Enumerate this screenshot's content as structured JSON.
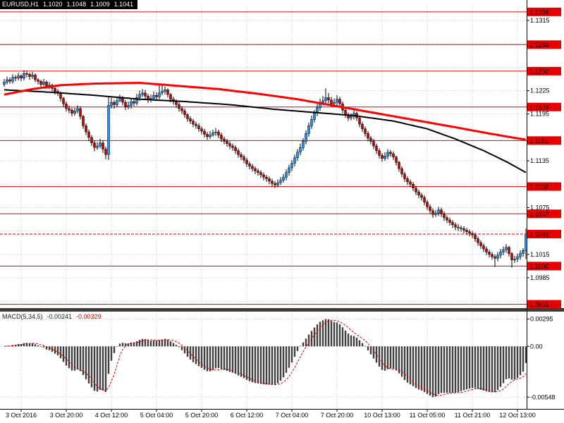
{
  "header": {
    "symbol_period": "EURUSD,H1",
    "open": "1.1020",
    "high": "1.1048",
    "low": "1.1009",
    "close": "1.1041"
  },
  "macd_label": {
    "name": "MACD(5,34,5)",
    "value": "-0.00241",
    "signal": "-0.00329"
  },
  "colors": {
    "background": "#ffffff",
    "grid": "#c9c9c9",
    "level": "#e60000",
    "bull": "#1e90ff",
    "bear": "#cc0000",
    "wick": "#000000",
    "ma_slow": "#ff0000",
    "ma_fast": "#000000",
    "histogram": "#3f3f3f",
    "signal_line": "#e00000",
    "label_box": "#e60000",
    "label_box_text": "#ffffff",
    "header_bg": "#000000",
    "header_text": "#ffffff",
    "separator": "#3c3c3c",
    "axis_line": "#000000"
  },
  "chart_data": {
    "type": "candlestick",
    "symbol": "EURUSD",
    "timeframe": "H1",
    "price_axis": {
      "top": 1.1334,
      "bottom": 1.0947,
      "grid_prices": [
        1.0955,
        1.0985,
        1.1015,
        1.1045,
        1.1075,
        1.1105,
        1.1135,
        1.1165,
        1.1195,
        1.1225,
        1.1255,
        1.1285,
        1.1315
      ],
      "plain_labels": [
        1.1315,
        1.1225,
        1.1195,
        1.1135,
        1.1075,
        1.1015,
        1.0985
      ],
      "level_lines": [
        1.1326,
        1.1284,
        1.125,
        1.1204,
        1.1161,
        1.1102,
        1.1067,
        1.1,
        1.0951
      ],
      "current_price": 1.1041
    },
    "time_labels": [
      [
        6,
        "3 Oct 2016"
      ],
      [
        22,
        "3 Oct 20:00"
      ],
      [
        38,
        "4 Oct 12:00"
      ],
      [
        54,
        "5 Oct 04:00"
      ],
      [
        70,
        "5 Oct 20:00"
      ],
      [
        86,
        "6 Oct 12:00"
      ],
      [
        102,
        "7 Oct 04:00"
      ],
      [
        118,
        "7 Oct 20:00"
      ],
      [
        134,
        "10 Oct 13:00"
      ],
      [
        150,
        "11 Oct 05:00"
      ],
      [
        166,
        "11 Oct 21:00"
      ],
      [
        182,
        "12 Oct 13:00"
      ]
    ],
    "ma_red_waypoints": [
      [
        0,
        1.122
      ],
      [
        10,
        1.1227
      ],
      [
        20,
        1.1232
      ],
      [
        32,
        1.1234
      ],
      [
        48,
        1.1235
      ],
      [
        62,
        1.1231
      ],
      [
        76,
        1.1227
      ],
      [
        90,
        1.1221
      ],
      [
        104,
        1.1214
      ],
      [
        118,
        1.1205
      ],
      [
        132,
        1.1196
      ],
      [
        146,
        1.1187
      ],
      [
        160,
        1.1178
      ],
      [
        172,
        1.117
      ],
      [
        185,
        1.1162
      ]
    ],
    "ma_black_waypoints": [
      [
        0,
        1.1226
      ],
      [
        16,
        1.1223
      ],
      [
        32,
        1.1219
      ],
      [
        48,
        1.1214
      ],
      [
        64,
        1.1211
      ],
      [
        80,
        1.1207
      ],
      [
        96,
        1.1201
      ],
      [
        110,
        1.1197
      ],
      [
        124,
        1.1193
      ],
      [
        138,
        1.1186
      ],
      [
        150,
        1.1176
      ],
      [
        160,
        1.1163
      ],
      [
        170,
        1.1148
      ],
      [
        178,
        1.1134
      ],
      [
        185,
        1.112
      ]
    ],
    "macd": {
      "params": [
        5,
        34,
        5
      ],
      "axis": {
        "top": 0.0036,
        "bottom": -0.0066,
        "labels": [
          [
            "0.00295",
            0.00295
          ],
          [
            "0.00",
            0
          ],
          [
            "-0.00548",
            -0.00548
          ]
        ],
        "max_value": 0.00295,
        "min_value": -0.00548
      }
    },
    "candles": [
      [
        1.1233,
        1.124,
        1.123,
        1.1236
      ],
      [
        1.1236,
        1.1243,
        1.1233,
        1.1239
      ],
      [
        1.1239,
        1.1242,
        1.1234,
        1.1237
      ],
      [
        1.1237,
        1.1246,
        1.1234,
        1.1242
      ],
      [
        1.1242,
        1.1245,
        1.1237,
        1.1241
      ],
      [
        1.1241,
        1.1248,
        1.1238,
        1.1244
      ],
      [
        1.1244,
        1.1246,
        1.1237,
        1.1241
      ],
      [
        1.1241,
        1.1251,
        1.1238,
        1.1247
      ],
      [
        1.1247,
        1.125,
        1.1242,
        1.1246
      ],
      [
        1.1246,
        1.1248,
        1.1239,
        1.1243
      ],
      [
        1.1243,
        1.1249,
        1.124,
        1.1245
      ],
      [
        1.1245,
        1.1247,
        1.1236,
        1.1239
      ],
      [
        1.1239,
        1.1241,
        1.1233,
        1.1237
      ],
      [
        1.1237,
        1.1239,
        1.123,
        1.1233
      ],
      [
        1.1233,
        1.124,
        1.1231,
        1.1236
      ],
      [
        1.1236,
        1.1238,
        1.1227,
        1.123
      ],
      [
        1.123,
        1.1236,
        1.1227,
        1.1232
      ],
      [
        1.1232,
        1.1234,
        1.1224,
        1.1228
      ],
      [
        1.1228,
        1.123,
        1.122,
        1.1224
      ],
      [
        1.1224,
        1.1227,
        1.1218,
        1.1222
      ],
      [
        1.1222,
        1.1224,
        1.1211,
        1.1215
      ],
      [
        1.1215,
        1.1217,
        1.1204,
        1.1208
      ],
      [
        1.1208,
        1.1211,
        1.1198,
        1.1202
      ],
      [
        1.1202,
        1.1206,
        1.1196,
        1.12
      ],
      [
        1.12,
        1.1203,
        1.1192,
        1.1196
      ],
      [
        1.1196,
        1.1203,
        1.1193,
        1.1199
      ],
      [
        1.1199,
        1.1206,
        1.1196,
        1.1202
      ],
      [
        1.1202,
        1.1205,
        1.1188,
        1.1192
      ],
      [
        1.1192,
        1.1194,
        1.1176,
        1.118
      ],
      [
        1.118,
        1.1183,
        1.1168,
        1.1172
      ],
      [
        1.1172,
        1.1175,
        1.116,
        1.1165
      ],
      [
        1.1165,
        1.1168,
        1.1154,
        1.1158
      ],
      [
        1.1158,
        1.1161,
        1.1147,
        1.1152
      ],
      [
        1.1152,
        1.1159,
        1.1149,
        1.1154
      ],
      [
        1.1154,
        1.1163,
        1.1151,
        1.1158
      ],
      [
        1.1158,
        1.1161,
        1.1145,
        1.115
      ],
      [
        1.115,
        1.1153,
        1.1137,
        1.1143
      ],
      [
        1.1143,
        1.1218,
        1.1136,
        1.1206
      ],
      [
        1.1206,
        1.1216,
        1.1202,
        1.121
      ],
      [
        1.121,
        1.1213,
        1.1202,
        1.1207
      ],
      [
        1.1207,
        1.1217,
        1.1204,
        1.1212
      ],
      [
        1.1212,
        1.122,
        1.121,
        1.1215
      ],
      [
        1.1215,
        1.1218,
        1.1206,
        1.121
      ],
      [
        1.121,
        1.1213,
        1.12,
        1.1204
      ],
      [
        1.1204,
        1.1211,
        1.1201,
        1.1206
      ],
      [
        1.1206,
        1.1215,
        1.1202,
        1.1211
      ],
      [
        1.1211,
        1.1214,
        1.1205,
        1.1209
      ],
      [
        1.1209,
        1.1221,
        1.1206,
        1.1216
      ],
      [
        1.1216,
        1.1225,
        1.1212,
        1.122
      ],
      [
        1.122,
        1.1227,
        1.1217,
        1.1222
      ],
      [
        1.1222,
        1.1226,
        1.1214,
        1.1218
      ],
      [
        1.1218,
        1.1221,
        1.1209,
        1.1213
      ],
      [
        1.1213,
        1.122,
        1.121,
        1.1215
      ],
      [
        1.1215,
        1.1224,
        1.1212,
        1.1219
      ],
      [
        1.1219,
        1.1223,
        1.1213,
        1.1217
      ],
      [
        1.1217,
        1.1232,
        1.1214,
        1.1222
      ],
      [
        1.1222,
        1.1233,
        1.1219,
        1.1224
      ],
      [
        1.1224,
        1.123,
        1.122,
        1.1226
      ],
      [
        1.1226,
        1.1228,
        1.1216,
        1.122
      ],
      [
        1.122,
        1.1222,
        1.121,
        1.1214
      ],
      [
        1.1214,
        1.1217,
        1.1207,
        1.1211
      ],
      [
        1.1211,
        1.1214,
        1.1203,
        1.1207
      ],
      [
        1.1207,
        1.121,
        1.1198,
        1.1202
      ],
      [
        1.1202,
        1.1205,
        1.1195,
        1.1199
      ],
      [
        1.1199,
        1.1202,
        1.119,
        1.1194
      ],
      [
        1.1194,
        1.1196,
        1.1185,
        1.1189
      ],
      [
        1.1189,
        1.1192,
        1.1182,
        1.1186
      ],
      [
        1.1186,
        1.1189,
        1.1178,
        1.1182
      ],
      [
        1.1182,
        1.1185,
        1.1176,
        1.118
      ],
      [
        1.118,
        1.1183,
        1.1172,
        1.1176
      ],
      [
        1.1176,
        1.1179,
        1.1169,
        1.1173
      ],
      [
        1.1173,
        1.1176,
        1.1165,
        1.1169
      ],
      [
        1.1169,
        1.1172,
        1.1162,
        1.1166
      ],
      [
        1.1166,
        1.1173,
        1.1163,
        1.1168
      ],
      [
        1.1168,
        1.1175,
        1.1166,
        1.1171
      ],
      [
        1.1171,
        1.1177,
        1.1167,
        1.1172
      ],
      [
        1.1172,
        1.1175,
        1.1164,
        1.1168
      ],
      [
        1.1168,
        1.1171,
        1.1159,
        1.1163
      ],
      [
        1.1163,
        1.1166,
        1.1156,
        1.116
      ],
      [
        1.116,
        1.1163,
        1.1153,
        1.1157
      ],
      [
        1.1157,
        1.116,
        1.115,
        1.1154
      ],
      [
        1.1154,
        1.1157,
        1.1148,
        1.1152
      ],
      [
        1.1152,
        1.1155,
        1.1144,
        1.1148
      ],
      [
        1.1148,
        1.1151,
        1.1139,
        1.1143
      ],
      [
        1.1143,
        1.1146,
        1.1136,
        1.114
      ],
      [
        1.114,
        1.1143,
        1.1132,
        1.1136
      ],
      [
        1.1136,
        1.1139,
        1.1127,
        1.1131
      ],
      [
        1.1131,
        1.1134,
        1.1124,
        1.1128
      ],
      [
        1.1128,
        1.1131,
        1.1121,
        1.1125
      ],
      [
        1.1125,
        1.1128,
        1.1118,
        1.1122
      ],
      [
        1.1122,
        1.1125,
        1.1116,
        1.112
      ],
      [
        1.112,
        1.1123,
        1.1113,
        1.1117
      ],
      [
        1.1117,
        1.112,
        1.111,
        1.1114
      ],
      [
        1.1114,
        1.1117,
        1.1108,
        1.1112
      ],
      [
        1.1112,
        1.1115,
        1.1105,
        1.1109
      ],
      [
        1.1109,
        1.1112,
        1.1102,
        1.1106
      ],
      [
        1.1106,
        1.1109,
        1.11,
        1.1104
      ],
      [
        1.1104,
        1.1111,
        1.1101,
        1.1107
      ],
      [
        1.1107,
        1.1114,
        1.1104,
        1.111
      ],
      [
        1.111,
        1.1118,
        1.1107,
        1.1114
      ],
      [
        1.1114,
        1.1124,
        1.111,
        1.112
      ],
      [
        1.112,
        1.113,
        1.1116,
        1.1126
      ],
      [
        1.1126,
        1.1136,
        1.1122,
        1.1132
      ],
      [
        1.1132,
        1.1143,
        1.1128,
        1.1139
      ],
      [
        1.1139,
        1.115,
        1.1135,
        1.1146
      ],
      [
        1.1146,
        1.1157,
        1.1142,
        1.1152
      ],
      [
        1.1152,
        1.1164,
        1.1148,
        1.116
      ],
      [
        1.116,
        1.1174,
        1.1156,
        1.117
      ],
      [
        1.117,
        1.1184,
        1.1166,
        1.118
      ],
      [
        1.118,
        1.1193,
        1.1176,
        1.1188
      ],
      [
        1.1188,
        1.12,
        1.1184,
        1.1196
      ],
      [
        1.1196,
        1.1208,
        1.1192,
        1.1203
      ],
      [
        1.1203,
        1.1215,
        1.1199,
        1.121
      ],
      [
        1.121,
        1.1218,
        1.1206,
        1.1212
      ],
      [
        1.1212,
        1.1228,
        1.1208,
        1.1216
      ],
      [
        1.1216,
        1.1222,
        1.1209,
        1.1213
      ],
      [
        1.1213,
        1.1217,
        1.1204,
        1.1208
      ],
      [
        1.1208,
        1.1215,
        1.1205,
        1.121
      ],
      [
        1.121,
        1.1219,
        1.1206,
        1.1214
      ],
      [
        1.1214,
        1.1217,
        1.1204,
        1.1208
      ],
      [
        1.1208,
        1.1211,
        1.1196,
        1.12
      ],
      [
        1.12,
        1.1203,
        1.119,
        1.1194
      ],
      [
        1.1194,
        1.1197,
        1.1186,
        1.119
      ],
      [
        1.119,
        1.1196,
        1.1187,
        1.1192
      ],
      [
        1.1192,
        1.12,
        1.1188,
        1.1196
      ],
      [
        1.1196,
        1.1198,
        1.1186,
        1.119
      ],
      [
        1.119,
        1.1192,
        1.1178,
        1.1182
      ],
      [
        1.1182,
        1.1185,
        1.1172,
        1.1176
      ],
      [
        1.1176,
        1.1179,
        1.1166,
        1.117
      ],
      [
        1.117,
        1.1173,
        1.116,
        1.1164
      ],
      [
        1.1164,
        1.1167,
        1.1156,
        1.116
      ],
      [
        1.116,
        1.1163,
        1.115,
        1.1154
      ],
      [
        1.1154,
        1.1157,
        1.1144,
        1.1148
      ],
      [
        1.1148,
        1.1151,
        1.1138,
        1.1142
      ],
      [
        1.1142,
        1.1145,
        1.1134,
        1.1138
      ],
      [
        1.1138,
        1.1146,
        1.1135,
        1.1141
      ],
      [
        1.1141,
        1.115,
        1.1137,
        1.1146
      ],
      [
        1.1146,
        1.1149,
        1.114,
        1.1144
      ],
      [
        1.1144,
        1.1147,
        1.1136,
        1.114
      ],
      [
        1.114,
        1.1142,
        1.1129,
        1.1133
      ],
      [
        1.1133,
        1.1135,
        1.1121,
        1.1125
      ],
      [
        1.1125,
        1.1128,
        1.1114,
        1.1118
      ],
      [
        1.1118,
        1.1121,
        1.1108,
        1.1112
      ],
      [
        1.1112,
        1.1115,
        1.1104,
        1.1108
      ],
      [
        1.1108,
        1.1111,
        1.1101,
        1.1105
      ],
      [
        1.1105,
        1.1108,
        1.1096,
        1.11
      ],
      [
        1.11,
        1.1103,
        1.1091,
        1.1095
      ],
      [
        1.1095,
        1.1098,
        1.1087,
        1.1091
      ],
      [
        1.1091,
        1.1094,
        1.1084,
        1.1088
      ],
      [
        1.1088,
        1.1091,
        1.1078,
        1.1082
      ],
      [
        1.1082,
        1.1085,
        1.1072,
        1.1076
      ],
      [
        1.1076,
        1.1079,
        1.1067,
        1.1071
      ],
      [
        1.1071,
        1.1074,
        1.1062,
        1.1066
      ],
      [
        1.1066,
        1.1072,
        1.1063,
        1.1068
      ],
      [
        1.1068,
        1.1076,
        1.1064,
        1.1072
      ],
      [
        1.1072,
        1.1075,
        1.1063,
        1.1067
      ],
      [
        1.1067,
        1.107,
        1.1058,
        1.1062
      ],
      [
        1.1062,
        1.1065,
        1.1055,
        1.1059
      ],
      [
        1.1059,
        1.1062,
        1.1052,
        1.1056
      ],
      [
        1.1056,
        1.1059,
        1.1049,
        1.1053
      ],
      [
        1.1053,
        1.1056,
        1.1046,
        1.105
      ],
      [
        1.105,
        1.1054,
        1.1045,
        1.1049
      ],
      [
        1.1049,
        1.1052,
        1.1044,
        1.1048
      ],
      [
        1.1048,
        1.1051,
        1.1042,
        1.1046
      ],
      [
        1.1046,
        1.1049,
        1.104,
        1.1044
      ],
      [
        1.1044,
        1.1047,
        1.1038,
        1.1042
      ],
      [
        1.1042,
        1.1045,
        1.1036,
        1.104
      ],
      [
        1.104,
        1.1043,
        1.1031,
        1.1035
      ],
      [
        1.1035,
        1.1038,
        1.1026,
        1.103
      ],
      [
        1.103,
        1.1033,
        1.1022,
        1.1026
      ],
      [
        1.1026,
        1.1029,
        1.1018,
        1.1022
      ],
      [
        1.1022,
        1.1025,
        1.1014,
        1.1018
      ],
      [
        1.1018,
        1.1021,
        1.1011,
        1.1015
      ],
      [
        1.1015,
        1.1018,
        1.1008,
        1.1012
      ],
      [
        1.1012,
        1.1015,
        1.0999,
        1.101
      ],
      [
        1.101,
        1.1018,
        1.1006,
        1.1014
      ],
      [
        1.1014,
        1.1022,
        1.101,
        1.1018
      ],
      [
        1.1018,
        1.1025,
        1.1014,
        1.1021
      ],
      [
        1.1021,
        1.1028,
        1.1017,
        1.1024
      ],
      [
        1.1024,
        1.1026,
        1.1012,
        1.1016
      ],
      [
        1.1016,
        1.1018,
        1.0998,
        1.1008
      ],
      [
        1.1008,
        1.1013,
        1.1004,
        1.1009
      ],
      [
        1.1009,
        1.1016,
        1.1005,
        1.1012
      ],
      [
        1.1012,
        1.102,
        1.1008,
        1.1016
      ],
      [
        1.1016,
        1.1023,
        1.1012,
        1.102
      ],
      [
        1.102,
        1.1048,
        1.1009,
        1.1041
      ]
    ]
  }
}
